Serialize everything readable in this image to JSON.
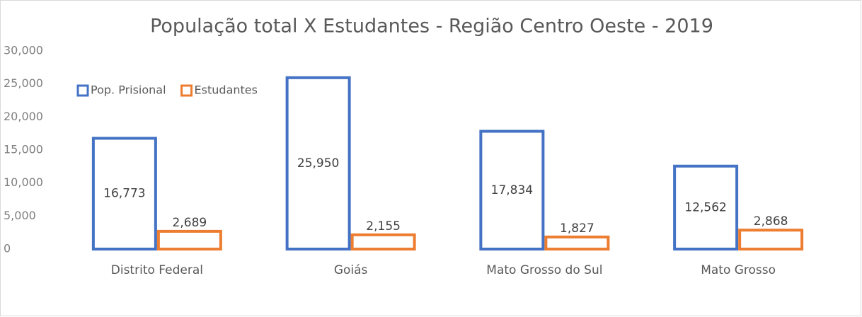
{
  "chart_data": {
    "type": "bar",
    "title": "População total X Estudantes - Região Centro Oeste - 2019",
    "categories": [
      "Distrito Federal",
      "Goiás",
      "Mato Grosso do Sul",
      "Mato Grosso"
    ],
    "series": [
      {
        "name": "Pop. Prisional",
        "color": "#4472c4",
        "values": [
          16773,
          25950,
          17834,
          12562
        ],
        "value_labels": [
          "16,773",
          "25,950",
          "17,834",
          "12,562"
        ]
      },
      {
        "name": "Estudantes",
        "color": "#ed7d31",
        "values": [
          2689,
          2155,
          1827,
          2868
        ],
        "value_labels": [
          "2,689",
          "2,155",
          "1,827",
          "2,868"
        ]
      }
    ],
    "ylim": [
      0,
      30000
    ],
    "yticks": [
      0,
      {
        "value": 5000,
        "label": "5,000"
      },
      {
        "value": 10000,
        "label": "10,000"
      },
      {
        "value": 15000,
        "label": "15,000"
      },
      {
        "value": 20000,
        "label": "20,000"
      },
      {
        "value": 25000,
        "label": "25,000"
      },
      {
        "value": 30000,
        "label": "30,000"
      }
    ],
    "grid": false,
    "legend": "upper left"
  }
}
